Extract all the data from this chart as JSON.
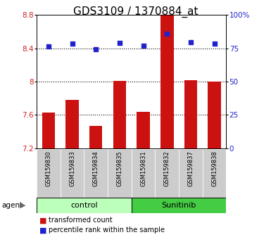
{
  "title": "GDS3109 / 1370884_at",
  "samples": [
    "GSM159830",
    "GSM159833",
    "GSM159834",
    "GSM159835",
    "GSM159831",
    "GSM159832",
    "GSM159837",
    "GSM159838"
  ],
  "bar_values": [
    7.63,
    7.78,
    7.47,
    8.01,
    7.64,
    8.8,
    8.02,
    8.0
  ],
  "dot_values": [
    76.5,
    78.5,
    74.5,
    79.0,
    77.0,
    86.0,
    79.5,
    78.5
  ],
  "ylim_left": [
    7.2,
    8.8
  ],
  "ylim_right": [
    0,
    100
  ],
  "yticks_left": [
    7.2,
    7.6,
    8.0,
    8.4,
    8.8
  ],
  "yticks_right": [
    0,
    25,
    50,
    75,
    100
  ],
  "ytick_labels_left": [
    "7.2",
    "7.6",
    "8",
    "8.4",
    "8.8"
  ],
  "ytick_labels_right": [
    "0",
    "25",
    "50",
    "75",
    "100%"
  ],
  "hlines": [
    7.6,
    8.0,
    8.4
  ],
  "bar_color": "#cc1111",
  "dot_color": "#2222cc",
  "bar_bottom": 7.2,
  "control_color": "#bbffbb",
  "sunitinib_color": "#44cc44",
  "sample_bg": "#cccccc",
  "group_label_control": "control",
  "group_label_sunitinib": "Sunitinib",
  "legend_bar_label": "transformed count",
  "legend_dot_label": "percentile rank within the sample",
  "agent_label": "agent",
  "title_fontsize": 11,
  "tick_fontsize": 7.5,
  "sample_fontsize": 6.0,
  "group_fontsize": 8,
  "legend_fontsize": 7
}
